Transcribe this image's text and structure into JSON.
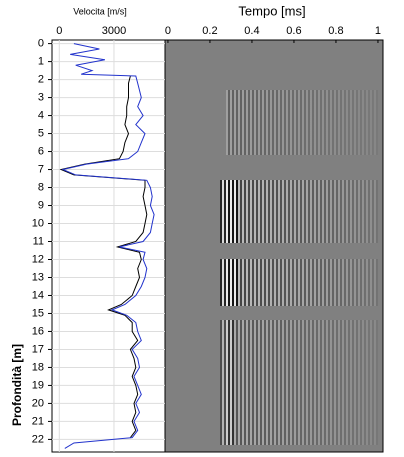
{
  "chart_data": [
    {
      "type": "line",
      "title": "Velocita [m/s]",
      "y_label": "Profondità [m]",
      "orientation": "vertical",
      "x": [
        0,
        0.3,
        0.6,
        0.9,
        1.2,
        1.5,
        1.7,
        1.8,
        2.2,
        2.6,
        3,
        3.5,
        4,
        4.5,
        5,
        5.5,
        6,
        6.4,
        6.7,
        7,
        7.3,
        7.6,
        8,
        8.5,
        9,
        9.5,
        10,
        10.5,
        11,
        11.3,
        11.6,
        12,
        12.5,
        13,
        13.5,
        14,
        14.5,
        14.8,
        15.1,
        15.5,
        16,
        16.5,
        17,
        17.5,
        18,
        18.5,
        19,
        19.5,
        20,
        20.5,
        21,
        21.5,
        21.9,
        22.2,
        22.5
      ],
      "series": [
        {
          "color": "#000000",
          "values": [
            null,
            null,
            null,
            null,
            null,
            null,
            null,
            3900,
            3800,
            3800,
            3800,
            3700,
            3700,
            3600,
            3800,
            3600,
            3500,
            3300,
            1400,
            100,
            800,
            4700,
            4700,
            4600,
            4700,
            4800,
            4700,
            4600,
            4200,
            3200,
            4400,
            4500,
            4300,
            4400,
            4200,
            4000,
            3400,
            2700,
            3600,
            4000,
            4000,
            4300,
            3900,
            4100,
            4200,
            4000,
            4200,
            4300,
            4100,
            4200,
            4000,
            4200,
            3900,
            null,
            null
          ]
        },
        {
          "color": "#2233cc",
          "values": [
            800,
            2200,
            600,
            2500,
            900,
            1800,
            1200,
            4200,
            4300,
            4400,
            4500,
            4300,
            4600,
            4200,
            4700,
            4500,
            4300,
            3800,
            1500,
            200,
            900,
            4800,
            5000,
            5100,
            5000,
            5200,
            5100,
            5000,
            4600,
            3300,
            4700,
            4600,
            4800,
            4700,
            4500,
            4200,
            3600,
            2900,
            3700,
            4200,
            4300,
            4500,
            4000,
            4300,
            4400,
            4100,
            4300,
            4500,
            4200,
            4400,
            4100,
            4300,
            4000,
            800,
            300
          ]
        }
      ],
      "vlim": [
        -400,
        5800
      ],
      "vticks": [
        0,
        3000
      ],
      "depthlim": [
        -0.2,
        22.7
      ],
      "depthticks": [
        0,
        1,
        2,
        3,
        4,
        5,
        6,
        7,
        8,
        9,
        10,
        11,
        12,
        13,
        14,
        15,
        16,
        17,
        18,
        19,
        20,
        21,
        22
      ],
      "grid": true
    },
    {
      "type": "image",
      "title": "Tempo [ms]",
      "background": "#808080",
      "xlim": [
        -0.014,
        1.024
      ],
      "xticks": [
        0,
        0.2,
        0.4,
        0.6,
        0.8,
        1
      ]
    }
  ]
}
